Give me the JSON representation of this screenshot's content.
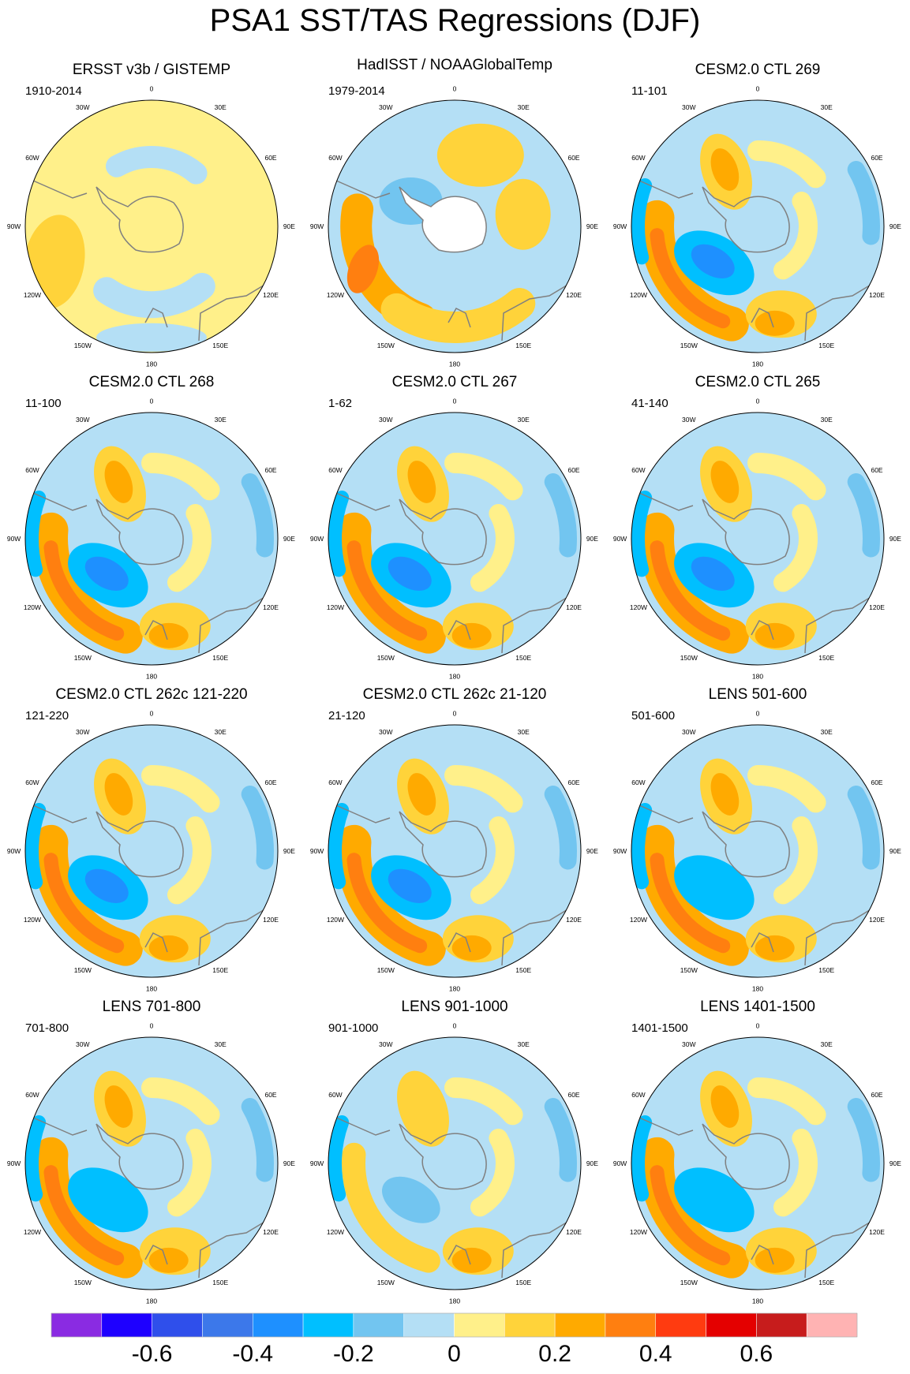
{
  "title": "PSA1 SST/TAS Regressions (DJF)",
  "longitude_labels": [
    "0",
    "30E",
    "60E",
    "90E",
    "120E",
    "150E",
    "180",
    "150W",
    "120W",
    "90W",
    "60W",
    "30W"
  ],
  "panels": [
    {
      "title": "ERSST v3b / GISTEMP",
      "period": "1910-2014",
      "pattern": "obs1"
    },
    {
      "title": "HadISST / NOAAGlobalTemp",
      "period": "1979-2014",
      "pattern": "obs2"
    },
    {
      "title": "CESM2.0 CTL 269",
      "period": "11-101",
      "pattern": "model"
    },
    {
      "title": "CESM2.0 CTL 268",
      "period": "11-100",
      "pattern": "model"
    },
    {
      "title": "CESM2.0 CTL 267",
      "period": "1-62",
      "pattern": "model"
    },
    {
      "title": "CESM2.0 CTL 265",
      "period": "41-140",
      "pattern": "model"
    },
    {
      "title": "CESM2.0 CTL 262c 121-220",
      "period": "121-220",
      "pattern": "model"
    },
    {
      "title": "CESM2.0 CTL 262c 21-120",
      "period": "21-120",
      "pattern": "model"
    },
    {
      "title": "LENS 501-600",
      "period": "501-600",
      "pattern": "lens"
    },
    {
      "title": "LENS 701-800",
      "period": "701-800",
      "pattern": "lens"
    },
    {
      "title": "LENS 901-1000",
      "period": "901-1000",
      "pattern": "weak"
    },
    {
      "title": "LENS 1401-1500",
      "period": "1401-1500",
      "pattern": "lens"
    }
  ],
  "colorbar": {
    "colors": [
      "#8A2BE2",
      "#1E00FF",
      "#2F4FEB",
      "#3C78EA",
      "#1E90FF",
      "#00BFFF",
      "#72C5F0",
      "#B4DFF5",
      "#FFF08A",
      "#FFD33A",
      "#FFAA00",
      "#FF7F10",
      "#FF3B10",
      "#E40000",
      "#C71C1C",
      "#FFB3B3"
    ],
    "tick_labels": [
      "-0.6",
      "-0.4",
      "-0.2",
      "0",
      "0.2",
      "0.4",
      "0.6"
    ],
    "tick_values": [
      -0.6,
      -0.4,
      -0.2,
      0,
      0.2,
      0.4,
      0.6
    ],
    "range": [
      -0.8,
      0.8
    ]
  }
}
